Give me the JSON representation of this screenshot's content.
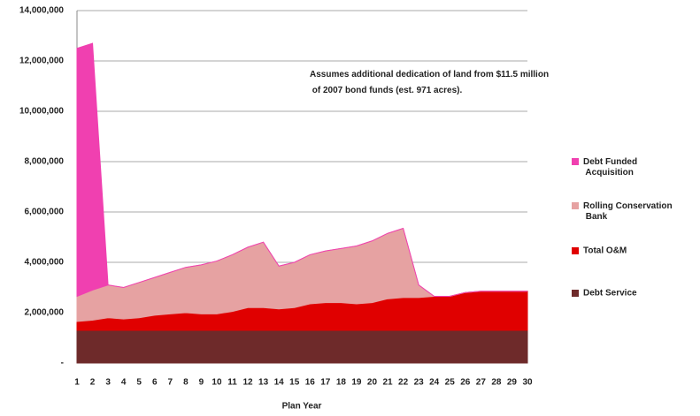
{
  "chart_data": {
    "type": "stacked_area",
    "annotation": "Assumes additional dedication of  land from $11.5 million of 2007 bond funds (est. 971 acres).",
    "x_label": "Plan Year",
    "categories": [
      "1",
      "2",
      "3",
      "4",
      "5",
      "6",
      "7",
      "8",
      "9",
      "10",
      "11",
      "12",
      "13",
      "14",
      "15",
      "16",
      "17",
      "18",
      "19",
      "20",
      "21",
      "22",
      "23",
      "24",
      "25",
      "26",
      "27",
      "28",
      "29",
      "30"
    ],
    "series": [
      {
        "name": "Debt Service",
        "color": "#6e2a2a",
        "values": [
          1300000,
          1300000,
          1300000,
          1300000,
          1300000,
          1300000,
          1300000,
          1300000,
          1300000,
          1300000,
          1300000,
          1300000,
          1300000,
          1300000,
          1300000,
          1300000,
          1300000,
          1300000,
          1300000,
          1300000,
          1300000,
          1300000,
          1300000,
          1300000,
          1300000,
          1300000,
          1300000,
          1300000,
          1300000,
          1300000
        ]
      },
      {
        "name": "Total O&M",
        "color": "#e00000",
        "values": [
          350000,
          400000,
          500000,
          450000,
          500000,
          600000,
          650000,
          700000,
          650000,
          650000,
          750000,
          900000,
          900000,
          850000,
          900000,
          1050000,
          1100000,
          1100000,
          1050000,
          1100000,
          1250000,
          1300000,
          1300000,
          1350000,
          1350000,
          1500000,
          1550000,
          1550000,
          1550000,
          1550000
        ]
      },
      {
        "name": "Rolling Conservation Bank",
        "color": "#e6a2a2",
        "values": [
          1000000,
          1200000,
          1300000,
          1250000,
          1400000,
          1500000,
          1650000,
          1800000,
          1950000,
          2100000,
          2250000,
          2400000,
          2600000,
          1700000,
          1800000,
          1950000,
          2050000,
          2150000,
          2300000,
          2450000,
          2600000,
          2750000,
          500000,
          0,
          0,
          0,
          0,
          0,
          0,
          0
        ]
      },
      {
        "name": "Debt Funded Acquisition",
        "color": "#f040b0",
        "values": [
          9850000,
          9800000,
          0,
          0,
          0,
          0,
          0,
          0,
          0,
          0,
          0,
          0,
          0,
          0,
          0,
          0,
          0,
          0,
          0,
          0,
          0,
          0,
          0,
          0,
          0,
          0,
          0,
          0,
          0,
          0
        ]
      }
    ],
    "ylim": [
      0,
      14000000
    ],
    "yticks": [
      {
        "value": 0,
        "label": "-"
      },
      {
        "value": 2000000,
        "label": "2,000,000"
      },
      {
        "value": 4000000,
        "label": "4,000,000"
      },
      {
        "value": 6000000,
        "label": "6,000,000"
      },
      {
        "value": 8000000,
        "label": "8,000,000"
      },
      {
        "value": 10000000,
        "label": "10,000,000"
      },
      {
        "value": 12000000,
        "label": "12,000,000"
      },
      {
        "value": 14000000,
        "label": "14,000,000"
      }
    ],
    "grid": true
  }
}
